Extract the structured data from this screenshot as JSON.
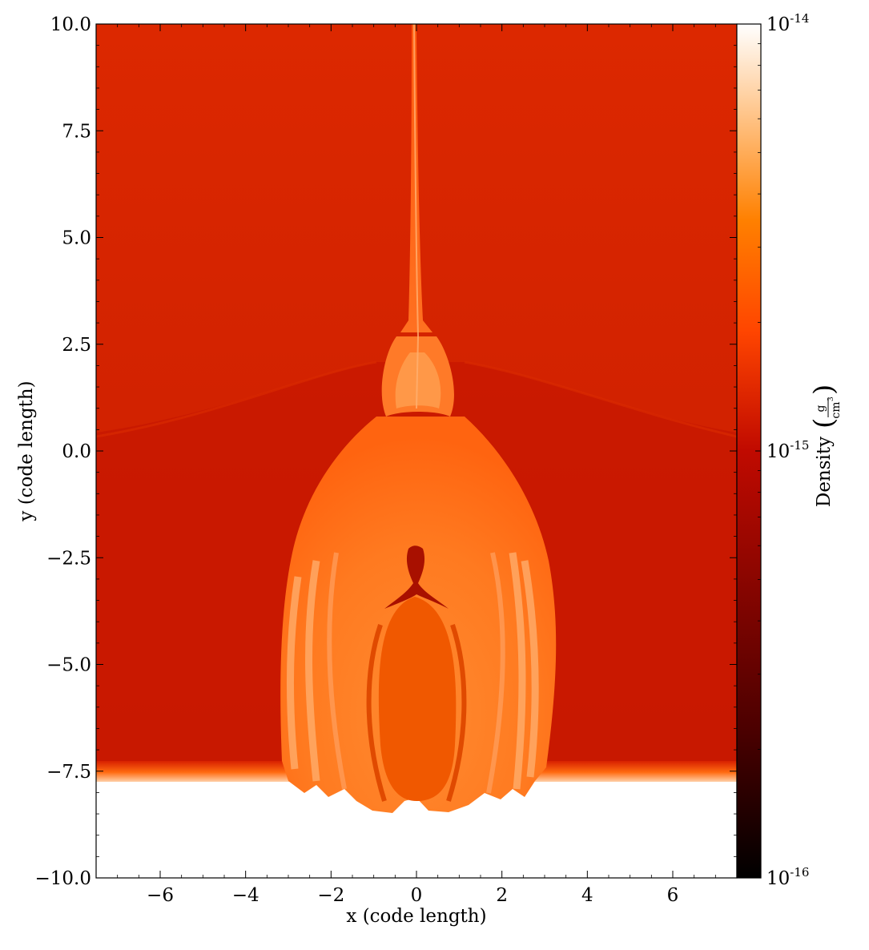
{
  "chart_data": {
    "type": "heatmap",
    "title": "",
    "xlabel": "x  (code length)",
    "ylabel": "y  (code length)",
    "xlim": [
      -7.5,
      7.5
    ],
    "ylim": [
      -10.0,
      10.0
    ],
    "x_ticks": [
      -6,
      -4,
      -2,
      0,
      2,
      4,
      6
    ],
    "x_tick_labels": [
      "−6",
      "−4",
      "−2",
      "0",
      "2",
      "4",
      "6"
    ],
    "y_ticks": [
      10.0,
      7.5,
      5.0,
      2.5,
      0.0,
      -2.5,
      -5.0,
      -7.5,
      -10.0
    ],
    "y_tick_labels": [
      "10.0",
      "7.5",
      "5.0",
      "2.5",
      "0.0",
      "−2.5",
      "−5.0",
      "−7.5",
      "−10.0"
    ],
    "colorbar": {
      "label": "Density",
      "unit_numerator": "g",
      "unit_denominator": "cm",
      "unit_denominator_exponent": "3",
      "scale": "log",
      "range": [
        1e-16,
        1e-14
      ],
      "ticks": [
        {
          "value": 1e-14,
          "base": "10",
          "exponent": "-14"
        },
        {
          "value": 1e-15,
          "base": "10",
          "exponent": "-15"
        },
        {
          "value": 1e-16,
          "base": "10",
          "exponent": "-16"
        }
      ],
      "colormap": [
        "#000000",
        "#4a0000",
        "#c00a00",
        "#ff4500",
        "#ff8000",
        "#ffc890",
        "#ffffff"
      ]
    },
    "field_colors": {
      "ambient": "#d42400",
      "lower_ambient": "#c81800",
      "plume": "#ff6e10",
      "plume_bright": "#ffb070",
      "cavity": "#ee4c00",
      "dark_core": "#b01400",
      "boundary_glow": "#ff7a1a",
      "empty_region": "#ffffff"
    }
  }
}
